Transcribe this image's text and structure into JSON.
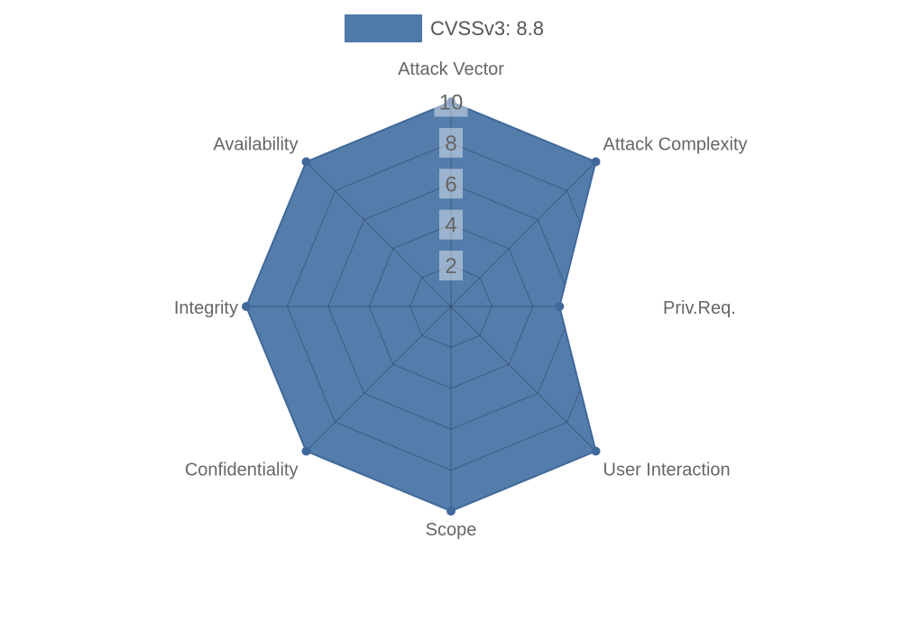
{
  "legend": {
    "label": "CVSSv3: 8.8",
    "swatch_color": "#4e79a8"
  },
  "chart_data": {
    "type": "radar",
    "title": "CVSSv3: 8.8",
    "categories": [
      "Attack Vector",
      "Attack Complexity",
      "Priv.Req.",
      "User Interaction",
      "Scope",
      "Confidentiality",
      "Integrity",
      "Availability"
    ],
    "series": [
      {
        "name": "CVSSv3: 8.8",
        "values": [
          10,
          10,
          5.3,
          10,
          10,
          10,
          10,
          10
        ]
      }
    ],
    "r_ticks": [
      2,
      4,
      6,
      8,
      10
    ],
    "r_max": 10,
    "grid": true,
    "grid_inside_fill_only": true,
    "legend_position": "top-center",
    "start_axis": "top",
    "direction": "clockwise",
    "colors": {
      "fill": "#4e79a8",
      "stroke": "#40689b",
      "marker": "#40689b",
      "grid_line": "rgba(25,35,50,0.30)",
      "axis_label": "#666666",
      "tick_label": "#666666",
      "tick_label_bg": "rgba(255,255,255,0.42)",
      "legend_text": "#555555"
    }
  }
}
